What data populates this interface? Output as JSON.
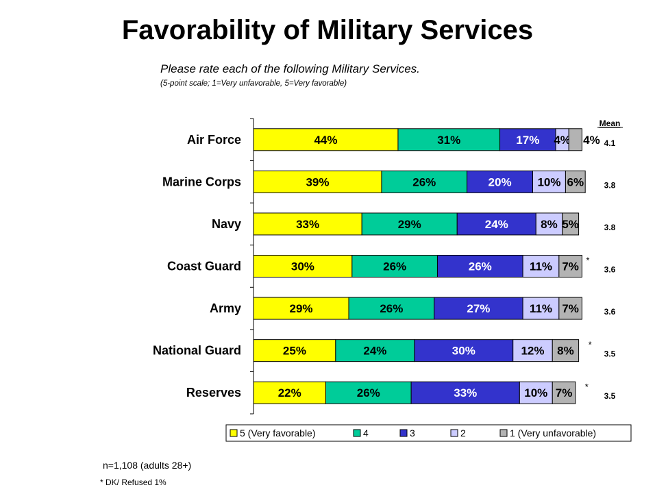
{
  "page": {
    "title": "Favorability of Military Services",
    "subtitle": "Please rate each of the following Military Services.",
    "subsubtitle": "(5-point scale; 1=Very unfavorable, 5=Very favorable)",
    "sample_note": "n=1,108 (adults 28+)",
    "dk_note": "* DK/ Refused 1%"
  },
  "chart_data": {
    "type": "bar",
    "orientation": "horizontal",
    "stacked": true,
    "categories": [
      "Air Force",
      "Marine Corps",
      "Navy",
      "Coast Guard",
      "Army",
      "National Guard",
      "Reserves"
    ],
    "series": [
      {
        "name": "5 (Very favorable)",
        "color": "#ffff00",
        "label_color": "#000000",
        "values": [
          44,
          39,
          33,
          30,
          29,
          25,
          22
        ]
      },
      {
        "name": "4",
        "color": "#00cc99",
        "label_color": "#000000",
        "values": [
          31,
          26,
          29,
          26,
          26,
          24,
          26
        ]
      },
      {
        "name": "3",
        "color": "#3333cc",
        "label_color": "#ffffff",
        "values": [
          17,
          20,
          24,
          26,
          27,
          30,
          33
        ]
      },
      {
        "name": "2",
        "color": "#ccccff",
        "label_color": "#000000",
        "values": [
          4,
          10,
          8,
          11,
          11,
          12,
          10
        ]
      },
      {
        "name": "1 (Very unfavorable)",
        "color": "#b3b3b3",
        "label_color": "#000000",
        "values": [
          4,
          6,
          5,
          7,
          7,
          8,
          7
        ]
      }
    ],
    "value_labels": [
      [
        "44%",
        "31%",
        "17%",
        "4%",
        "4%"
      ],
      [
        "39%",
        "26%",
        "20%",
        "10%",
        "6%"
      ],
      [
        "33%",
        "29%",
        "24%",
        "8%",
        "5%"
      ],
      [
        "30%",
        "26%",
        "26%",
        "11%",
        "7%"
      ],
      [
        "29%",
        "26%",
        "27%",
        "11%",
        "7%"
      ],
      [
        "25%",
        "24%",
        "30%",
        "12%",
        "8%"
      ],
      [
        "22%",
        "26%",
        "33%",
        "10%",
        "7%"
      ]
    ],
    "asterisks": [
      "",
      "",
      "",
      "*",
      "",
      "*",
      "*"
    ],
    "mean_header": "Mean",
    "means": [
      "4.1",
      "3.8",
      "3.8",
      "3.6",
      "3.6",
      "3.5",
      "3.5"
    ],
    "xlim": [
      0,
      100
    ],
    "grid": false,
    "legend_position": "bottom"
  }
}
